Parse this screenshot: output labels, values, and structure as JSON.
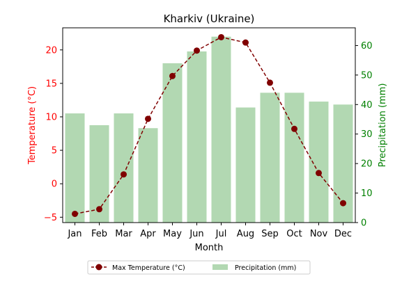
{
  "chart_data": {
    "type": "bar",
    "title": "Kharkiv (Ukraine)",
    "xlabel": "Month",
    "categories": [
      "Jan",
      "Feb",
      "Mar",
      "Apr",
      "May",
      "Jun",
      "Jul",
      "Aug",
      "Sep",
      "Oct",
      "Nov",
      "Dec"
    ],
    "y_left": {
      "label": "Temperature (°C)",
      "ylim": [
        -5.8,
        23.3
      ],
      "ticks": [
        -5,
        0,
        5,
        10,
        15,
        20
      ],
      "color": "#ff0000"
    },
    "y_right": {
      "label": "Precipitation (mm)",
      "ylim": [
        0,
        66
      ],
      "ticks": [
        0,
        10,
        20,
        30,
        40,
        50,
        60
      ],
      "color": "#008000"
    },
    "series": [
      {
        "name": "Max Temperature (°C)",
        "kind": "line",
        "axis": "left",
        "color": "#800000",
        "values": [
          -4.5,
          -3.8,
          1.4,
          9.7,
          16.1,
          19.9,
          21.9,
          21.1,
          15.1,
          8.2,
          1.6,
          -2.9
        ]
      },
      {
        "name": "Precipitation (mm)",
        "kind": "bar",
        "axis": "right",
        "color": "#b2d8b2",
        "values": [
          37,
          33,
          37,
          32,
          54,
          58,
          63,
          39,
          44,
          44,
          41,
          40
        ]
      }
    ],
    "legend": {
      "position": "bottom-center",
      "entries": [
        "Max Temperature (°C)",
        "Precipitation (mm)"
      ]
    },
    "grid": false
  }
}
